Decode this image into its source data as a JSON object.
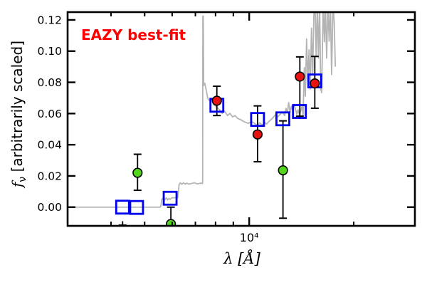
{
  "figure": {
    "annotation": {
      "text": "EAZY best-fit",
      "color": "#ff0000"
    },
    "xlabel": {
      "lambda": "λ",
      "unit": "[Å]"
    },
    "ylabel": {
      "f": "f",
      "sub": "ν",
      "rest": " [arbitrarily scaled]"
    }
  },
  "colors": {
    "spectrum": "#b4b4b4",
    "model_square": "#0000ee",
    "observed_red": "#e81212",
    "observed_green": "#52d61c",
    "errorbar": "#000000",
    "frame": "#000000",
    "annotation": "#ff0000"
  },
  "chart_data": {
    "type": "line",
    "title": "EAZY best-fit",
    "xlabel": "λ [Å]",
    "ylabel": "f_ν [arbitrarily scaled]",
    "xscale": "log",
    "xlim": [
      3000,
      30000
    ],
    "ylim": [
      -0.012,
      0.125
    ],
    "grid": false,
    "legend": false,
    "x_ticks_major": [
      {
        "value": 10000,
        "label": "10⁴"
      }
    ],
    "x_ticks_minor": [
      4000,
      5000,
      6000,
      7000,
      8000,
      9000,
      20000
    ],
    "y_ticks_major": [
      {
        "value": 0.0,
        "label": "0.00"
      },
      {
        "value": 0.02,
        "label": "0.02"
      },
      {
        "value": 0.04,
        "label": "0.04"
      },
      {
        "value": 0.06,
        "label": "0.06"
      },
      {
        "value": 0.08,
        "label": "0.08"
      },
      {
        "value": 0.1,
        "label": "0.10"
      },
      {
        "value": 0.12,
        "label": "0.12"
      }
    ],
    "series": {
      "template_spectrum": {
        "name": "EAZY best-fit template spectrum",
        "style": "line",
        "points": [
          [
            3000,
            0.0
          ],
          [
            5540,
            0.0
          ],
          [
            5570,
            0.0008
          ],
          [
            5600,
            0.005
          ],
          [
            5660,
            0.006
          ],
          [
            5710,
            0.0046
          ],
          [
            5770,
            0.006
          ],
          [
            5820,
            0.0046
          ],
          [
            5870,
            0.0056
          ],
          [
            5920,
            0.005
          ],
          [
            5990,
            0.006
          ],
          [
            6230,
            0.006
          ],
          [
            6280,
            0.0142
          ],
          [
            6330,
            0.0156
          ],
          [
            6400,
            0.0147
          ],
          [
            6470,
            0.0156
          ],
          [
            6550,
            0.0147
          ],
          [
            6620,
            0.0154
          ],
          [
            6700,
            0.0147
          ],
          [
            6950,
            0.0156
          ],
          [
            7100,
            0.0149
          ],
          [
            7250,
            0.0154
          ],
          [
            7330,
            0.0151
          ],
          [
            7345,
            0.016
          ],
          [
            7355,
            0.1225
          ],
          [
            7375,
            0.1225
          ],
          [
            7395,
            0.078
          ],
          [
            7450,
            0.0794
          ],
          [
            7510,
            0.0757
          ],
          [
            7600,
            0.0697
          ],
          [
            7700,
            0.0679
          ],
          [
            7800,
            0.0693
          ],
          [
            7910,
            0.0656
          ],
          [
            8100,
            0.0638
          ],
          [
            8250,
            0.0619
          ],
          [
            8360,
            0.0601
          ],
          [
            8500,
            0.0615
          ],
          [
            8660,
            0.0587
          ],
          [
            8800,
            0.0601
          ],
          [
            8960,
            0.0578
          ],
          [
            9110,
            0.0587
          ],
          [
            9260,
            0.0569
          ],
          [
            9460,
            0.056
          ],
          [
            9700,
            0.0546
          ],
          [
            9950,
            0.0537
          ],
          [
            10150,
            0.055
          ],
          [
            10350,
            0.0537
          ],
          [
            10560,
            0.0523
          ],
          [
            10720,
            0.0541
          ],
          [
            10900,
            0.0523
          ],
          [
            11060,
            0.0546
          ],
          [
            11210,
            0.0532
          ],
          [
            11410,
            0.055
          ],
          [
            11660,
            0.0569
          ],
          [
            11900,
            0.0592
          ],
          [
            12060,
            0.0578
          ],
          [
            12300,
            0.0596
          ],
          [
            12460,
            0.061
          ],
          [
            12650,
            0.0587
          ],
          [
            12760,
            0.0633
          ],
          [
            12880,
            0.0606
          ],
          [
            12990,
            0.067
          ],
          [
            13110,
            0.0606
          ],
          [
            13230,
            0.0647
          ],
          [
            13350,
            0.0619
          ],
          [
            13470,
            0.066
          ],
          [
            13590,
            0.0628
          ],
          [
            13710,
            0.0596
          ],
          [
            13830,
            0.0624
          ],
          [
            13950,
            0.0592
          ],
          [
            14070,
            0.0615
          ],
          [
            14200,
            0.0651
          ],
          [
            14290,
            0.0583
          ],
          [
            14410,
            0.0894
          ],
          [
            14510,
            0.0711
          ],
          [
            14630,
            0.1078
          ],
          [
            14750,
            0.0803
          ],
          [
            14870,
            0.1009
          ],
          [
            14990,
            0.0757
          ],
          [
            15110,
            0.1147
          ],
          [
            15230,
            0.0849
          ],
          [
            15350,
            0.1229
          ],
          [
            15470,
            0.13
          ],
          [
            15590,
            0.0963
          ],
          [
            15710,
            0.13
          ],
          [
            15830,
            0.0955
          ],
          [
            15950,
            0.13
          ],
          [
            16070,
            0.0757
          ],
          [
            16170,
            0.0734
          ],
          [
            16330,
            0.13
          ],
          [
            16470,
            0.106
          ],
          [
            16570,
            0.13
          ],
          [
            16710,
            0.0955
          ],
          [
            16850,
            0.13
          ],
          [
            16990,
            0.1064
          ],
          [
            17130,
            0.13
          ],
          [
            17270,
            0.085
          ],
          [
            17430,
            0.13
          ],
          [
            17570,
            0.1185
          ],
          [
            17700,
            0.09
          ]
        ]
      },
      "model_photometry": {
        "name": "template photometry (open squares)",
        "style": "open-square",
        "points": [
          [
            4320,
            0.0
          ],
          [
            4740,
            -0.0002
          ],
          [
            5920,
            0.0057
          ],
          [
            8070,
            0.0653
          ],
          [
            10570,
            0.0562
          ],
          [
            12500,
            0.0566
          ],
          [
            13950,
            0.0613
          ],
          [
            15450,
            0.0809
          ]
        ]
      },
      "observed_red": {
        "name": "observed photometry (red)",
        "style": "filled-circle",
        "points": [
          {
            "lambda": 8070,
            "flux": 0.0682,
            "err_lo": 0.0587,
            "err_hi": 0.0775
          },
          {
            "lambda": 10570,
            "flux": 0.0466,
            "err_lo": 0.0291,
            "err_hi": 0.0649
          },
          {
            "lambda": 13990,
            "flux": 0.0837,
            "err_lo": 0.0583,
            "err_hi": 0.0963
          },
          {
            "lambda": 15450,
            "flux": 0.0793,
            "err_lo": 0.0634,
            "err_hi": 0.0966
          }
        ]
      },
      "observed_green": {
        "name": "observed photometry (green)",
        "style": "filled-circle",
        "points": [
          {
            "lambda": 4770,
            "flux": 0.022,
            "err_lo": 0.0108,
            "err_hi": 0.0339
          },
          {
            "lambda": 5950,
            "flux": -0.0108,
            "err_lo": -0.02,
            "err_hi": 0.0
          },
          {
            "lambda": 12510,
            "flux": 0.0236,
            "err_lo": -0.0071,
            "err_hi": 0.0553
          }
        ]
      },
      "clipped_errorbar": {
        "name": "error-bar cap of point below axis",
        "lambda": 4320,
        "cap_value": -0.0115,
        "stem_top_value": -0.009
      }
    }
  }
}
